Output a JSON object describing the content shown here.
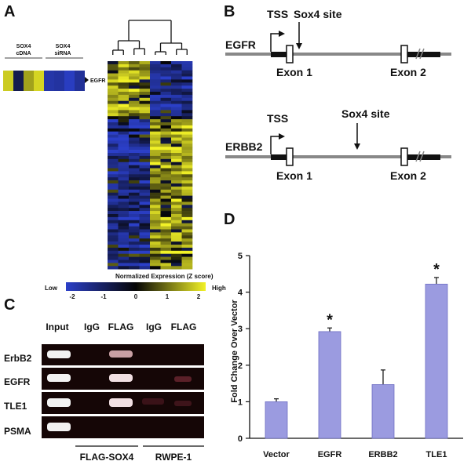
{
  "panels": {
    "A": {
      "letter": "A",
      "sox4_cdna": [
        "SOX4",
        "cDNA"
      ],
      "sox4_sirna": [
        "SOX4",
        "siRNA"
      ],
      "egfr_marker": "EGFR",
      "colorbar_title": "Normalized Expression (Z score)",
      "low_label": "Low",
      "high_label": "High",
      "colorbar_ticks": [
        "-2",
        "-1",
        "0",
        "1",
        "2"
      ],
      "colors": {
        "low": "#2b3fc8",
        "mid": "#050505",
        "high": "#f2f227"
      }
    },
    "B": {
      "letter": "B",
      "egfr": {
        "gene": "EGFR",
        "tss": "TSS",
        "site": "Sox4 site",
        "exon1": "Exon 1",
        "exon2": "Exon 2"
      },
      "erbb2": {
        "gene": "ERBB2",
        "tss": "TSS",
        "site": "Sox4 site",
        "exon1": "Exon 1",
        "exon2": "Exon 2"
      }
    },
    "C": {
      "letter": "C",
      "lanes": [
        "Input",
        "IgG",
        "FLAG",
        "IgG",
        "FLAG"
      ],
      "rows": [
        "ErbB2",
        "EGFR",
        "TLE1",
        "PSMA"
      ],
      "groups": [
        "FLAG-SOX4",
        "RWPE-1"
      ]
    },
    "D": {
      "letter": "D",
      "bar_color": "#9b9be0"
    }
  },
  "chart_data": {
    "type": "bar",
    "title": "",
    "xlabel": "",
    "ylabel": "Fold Change Over Vector",
    "categories": [
      "Vector",
      "EGFR",
      "ERBB2",
      "TLE1"
    ],
    "values": [
      1.0,
      2.92,
      1.47,
      4.22
    ],
    "errors": [
      0.08,
      0.1,
      0.4,
      0.18
    ],
    "significant": [
      "",
      "*",
      "",
      "*"
    ],
    "ylim": [
      0,
      5
    ],
    "yticks": [
      "0",
      "1",
      "2",
      "3",
      "4",
      "5"
    ],
    "grid": false
  }
}
